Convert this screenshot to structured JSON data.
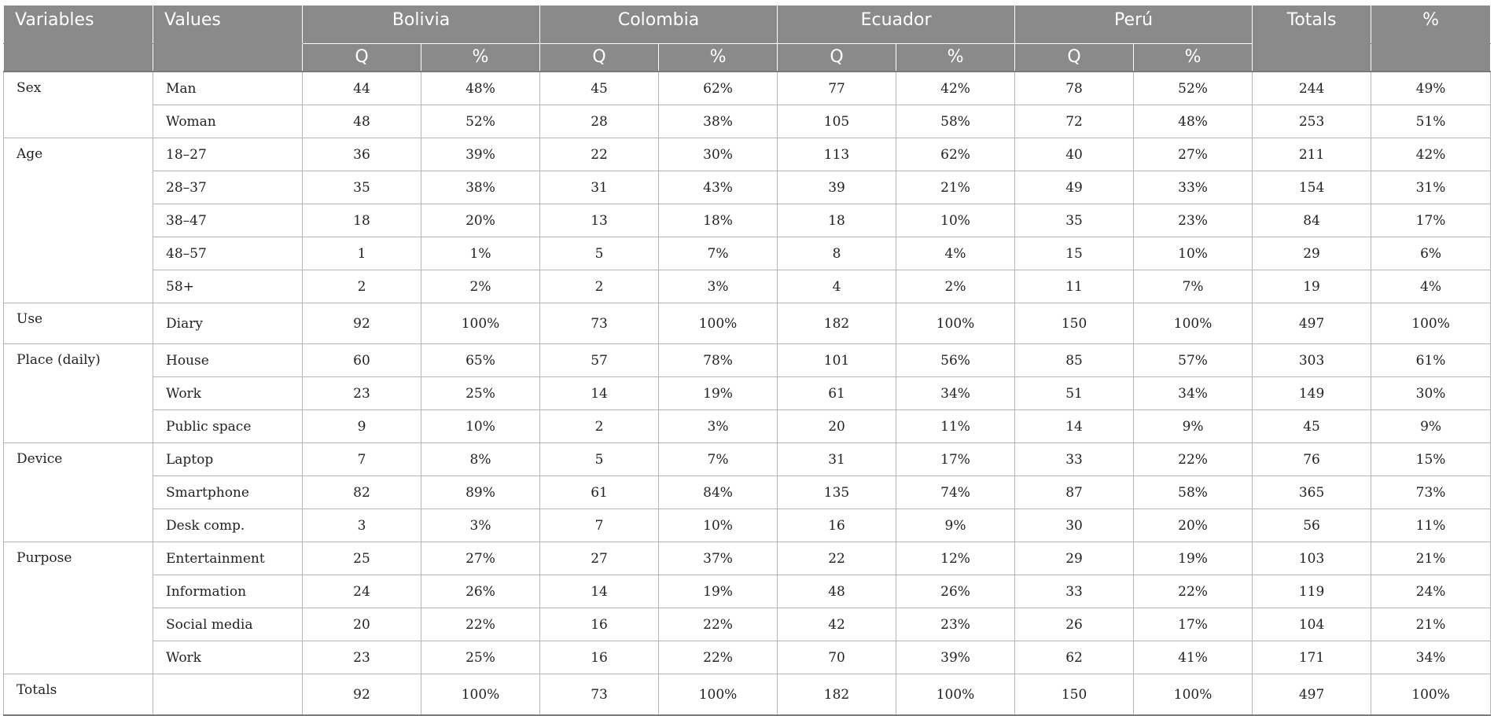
{
  "headers": {
    "variables": "Variables",
    "values": "Values",
    "countries": [
      "Bolivia",
      "Colombia",
      "Ecuador",
      "Perú"
    ],
    "totals": "Totals",
    "percent": "%",
    "sub_q": "Q",
    "sub_pct": "%"
  },
  "groups": [
    {
      "variable": "Sex",
      "rows": [
        {
          "value": "Man",
          "cells": [
            "44",
            "48%",
            "45",
            "62%",
            "77",
            "42%",
            "78",
            "52%"
          ],
          "total": "244",
          "pct": "49%"
        },
        {
          "value": "Woman",
          "cells": [
            "48",
            "52%",
            "28",
            "38%",
            "105",
            "58%",
            "72",
            "48%"
          ],
          "total": "253",
          "pct": "51%"
        }
      ]
    },
    {
      "variable": "Age",
      "rows": [
        {
          "value": "18–27",
          "cells": [
            "36",
            "39%",
            "22",
            "30%",
            "113",
            "62%",
            "40",
            "27%"
          ],
          "total": "211",
          "pct": "42%"
        },
        {
          "value": "28–37",
          "cells": [
            "35",
            "38%",
            "31",
            "43%",
            "39",
            "21%",
            "49",
            "33%"
          ],
          "total": "154",
          "pct": "31%"
        },
        {
          "value": "38–47",
          "cells": [
            "18",
            "20%",
            "13",
            "18%",
            "18",
            "10%",
            "35",
            "23%"
          ],
          "total": "84",
          "pct": "17%"
        },
        {
          "value": "48–57",
          "cells": [
            "1",
            "1%",
            "5",
            "7%",
            "8",
            "4%",
            "15",
            "10%"
          ],
          "total": "29",
          "pct": "6%"
        },
        {
          "value": "58+",
          "cells": [
            "2",
            "2%",
            "2",
            "3%",
            "4",
            "2%",
            "11",
            "7%"
          ],
          "total": "19",
          "pct": "4%"
        }
      ]
    },
    {
      "variable": "Use",
      "rows": [
        {
          "value": "Diary",
          "cells": [
            "92",
            "100%",
            "73",
            "100%",
            "182",
            "100%",
            "150",
            "100%"
          ],
          "total": "497",
          "pct": "100%"
        }
      ]
    },
    {
      "variable": "Place (daily)",
      "rows": [
        {
          "value": "House",
          "cells": [
            "60",
            "65%",
            "57",
            "78%",
            "101",
            "56%",
            "85",
            "57%"
          ],
          "total": "303",
          "pct": "61%"
        },
        {
          "value": "Work",
          "cells": [
            "23",
            "25%",
            "14",
            "19%",
            "61",
            "34%",
            "51",
            "34%"
          ],
          "total": "149",
          "pct": "30%"
        },
        {
          "value": "Public space",
          "cells": [
            "9",
            "10%",
            "2",
            "3%",
            "20",
            "11%",
            "14",
            "9%"
          ],
          "total": "45",
          "pct": "9%"
        }
      ]
    },
    {
      "variable": "Device",
      "rows": [
        {
          "value": "Laptop",
          "cells": [
            "7",
            "8%",
            "5",
            "7%",
            "31",
            "17%",
            "33",
            "22%"
          ],
          "total": "76",
          "pct": "15%"
        },
        {
          "value": "Smartphone",
          "cells": [
            "82",
            "89%",
            "61",
            "84%",
            "135",
            "74%",
            "87",
            "58%"
          ],
          "total": "365",
          "pct": "73%"
        },
        {
          "value": "Desk comp.",
          "cells": [
            "3",
            "3%",
            "7",
            "10%",
            "16",
            "9%",
            "30",
            "20%"
          ],
          "total": "56",
          "pct": "11%"
        }
      ]
    },
    {
      "variable": "Purpose",
      "rows": [
        {
          "value": "Entertainment",
          "cells": [
            "25",
            "27%",
            "27",
            "37%",
            "22",
            "12%",
            "29",
            "19%"
          ],
          "total": "103",
          "pct": "21%"
        },
        {
          "value": "Information",
          "cells": [
            "24",
            "26%",
            "14",
            "19%",
            "48",
            "26%",
            "33",
            "22%"
          ],
          "total": "119",
          "pct": "24%"
        },
        {
          "value": "Social media",
          "cells": [
            "20",
            "22%",
            "16",
            "22%",
            "42",
            "23%",
            "26",
            "17%"
          ],
          "total": "104",
          "pct": "21%"
        },
        {
          "value": "Work",
          "cells": [
            "23",
            "25%",
            "16",
            "22%",
            "70",
            "39%",
            "62",
            "41%"
          ],
          "total": "171",
          "pct": "34%"
        }
      ]
    },
    {
      "variable": "Totals",
      "rows": [
        {
          "value": "",
          "cells": [
            "92",
            "100%",
            "73",
            "100%",
            "182",
            "100%",
            "150",
            "100%"
          ],
          "total": "497",
          "pct": "100%"
        }
      ]
    }
  ]
}
